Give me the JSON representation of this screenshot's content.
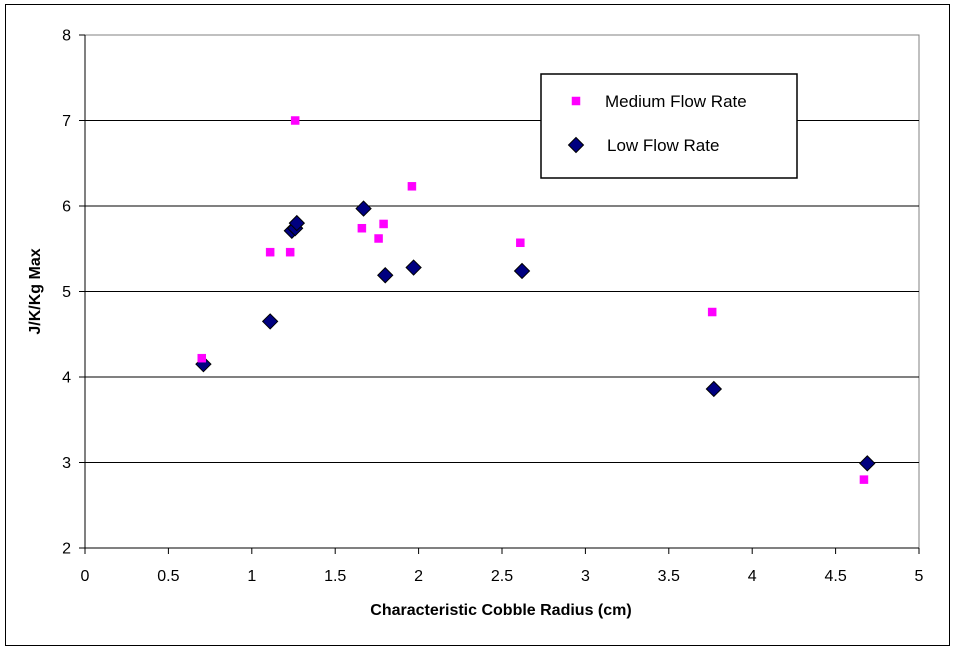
{
  "chart_data": {
    "type": "scatter",
    "title": "",
    "xlabel": "Characteristic Cobble Radius (cm)",
    "ylabel": "J/K/Kg Max",
    "xlim": [
      0,
      5
    ],
    "ylim": [
      2,
      8
    ],
    "x_ticks": [
      "0",
      "0.5",
      "1",
      "1.5",
      "2",
      "2.5",
      "3",
      "3.5",
      "4",
      "4.5",
      "5"
    ],
    "y_ticks": [
      "2",
      "3",
      "4",
      "5",
      "6",
      "7",
      "8"
    ],
    "grid": "horizontal",
    "legend_position": "top-right",
    "series": [
      {
        "name": "Medium Flow Rate",
        "marker": "square",
        "color": "#FF00FF",
        "points": [
          {
            "x": 0.7,
            "y": 4.22
          },
          {
            "x": 1.11,
            "y": 5.46
          },
          {
            "x": 1.23,
            "y": 5.46
          },
          {
            "x": 1.26,
            "y": 7.0
          },
          {
            "x": 1.66,
            "y": 5.74
          },
          {
            "x": 1.76,
            "y": 5.62
          },
          {
            "x": 1.79,
            "y": 5.79
          },
          {
            "x": 1.96,
            "y": 6.23
          },
          {
            "x": 2.61,
            "y": 5.57
          },
          {
            "x": 3.76,
            "y": 4.76
          },
          {
            "x": 4.67,
            "y": 2.8
          }
        ]
      },
      {
        "name": "Low Flow Rate",
        "marker": "diamond",
        "color": "#000080",
        "points": [
          {
            "x": 0.71,
            "y": 4.15
          },
          {
            "x": 1.11,
            "y": 4.65
          },
          {
            "x": 1.24,
            "y": 5.71
          },
          {
            "x": 1.26,
            "y": 5.74
          },
          {
            "x": 1.27,
            "y": 5.8
          },
          {
            "x": 1.67,
            "y": 5.97
          },
          {
            "x": 1.8,
            "y": 5.19
          },
          {
            "x": 1.97,
            "y": 5.28
          },
          {
            "x": 2.62,
            "y": 5.24
          },
          {
            "x": 3.77,
            "y": 3.86
          },
          {
            "x": 4.69,
            "y": 2.99
          }
        ]
      }
    ]
  }
}
